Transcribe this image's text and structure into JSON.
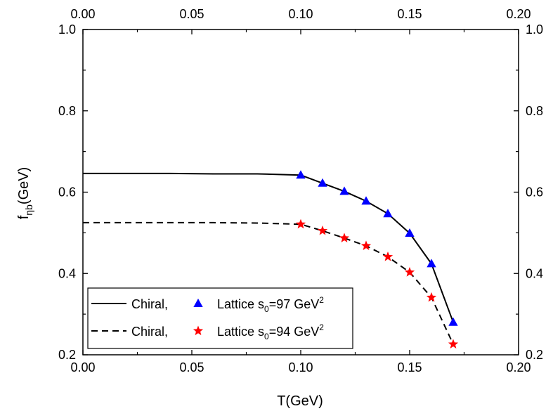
{
  "chart_data": {
    "type": "line",
    "xlabel": "T(GeV)",
    "ylabel": {
      "main": "f",
      "sub1": "η",
      "sub2": "b",
      "unit": "(GeV)"
    },
    "xlim": [
      0.0,
      0.2
    ],
    "ylim": [
      0.2,
      1.0
    ],
    "x_ticks": [
      "0.00",
      "0.05",
      "0.10",
      "0.15",
      "0.20"
    ],
    "y_ticks": [
      "0.2",
      "0.4",
      "0.6",
      "0.8",
      "1.0"
    ],
    "grid": false,
    "legend_position": "bottom-left",
    "series": [
      {
        "key": "chiral_97",
        "style": "solid",
        "color": "#000000",
        "x": [
          0.0,
          0.02,
          0.04,
          0.06,
          0.08,
          0.1,
          0.11,
          0.12,
          0.13,
          0.14,
          0.15,
          0.16,
          0.17
        ],
        "y": [
          0.646,
          0.646,
          0.646,
          0.645,
          0.645,
          0.642,
          0.622,
          0.602,
          0.578,
          0.547,
          0.499,
          0.424,
          0.28
        ]
      },
      {
        "key": "lattice_97",
        "style": "marker",
        "marker": "triangle",
        "color": "#0000ff",
        "x": [
          0.1,
          0.11,
          0.12,
          0.13,
          0.14,
          0.15,
          0.16,
          0.17
        ],
        "y": [
          0.642,
          0.622,
          0.602,
          0.578,
          0.547,
          0.499,
          0.424,
          0.28
        ]
      },
      {
        "key": "chiral_94",
        "style": "dashed",
        "color": "#000000",
        "x": [
          0.0,
          0.02,
          0.04,
          0.06,
          0.08,
          0.1,
          0.11,
          0.12,
          0.13,
          0.14,
          0.15,
          0.16,
          0.17
        ],
        "y": [
          0.525,
          0.525,
          0.525,
          0.525,
          0.524,
          0.521,
          0.505,
          0.487,
          0.468,
          0.441,
          0.403,
          0.341,
          0.226
        ]
      },
      {
        "key": "lattice_94",
        "style": "marker",
        "marker": "star",
        "color": "#ff0000",
        "x": [
          0.1,
          0.11,
          0.12,
          0.13,
          0.14,
          0.15,
          0.16,
          0.17
        ],
        "y": [
          0.521,
          0.505,
          0.487,
          0.468,
          0.441,
          0.403,
          0.341,
          0.226
        ]
      }
    ],
    "legend": [
      {
        "line_label": "Chiral,",
        "line_key": "chiral_97",
        "marker_key": "lattice_97",
        "marker_label": "Lattice s",
        "sub": "0",
        "value": "=97 GeV",
        "sup": "2"
      },
      {
        "line_label": "Chiral,",
        "line_key": "chiral_94",
        "marker_key": "lattice_94",
        "marker_label": "Lattice s",
        "sub": "0",
        "value": "=94 GeV",
        "sup": "2"
      }
    ]
  }
}
